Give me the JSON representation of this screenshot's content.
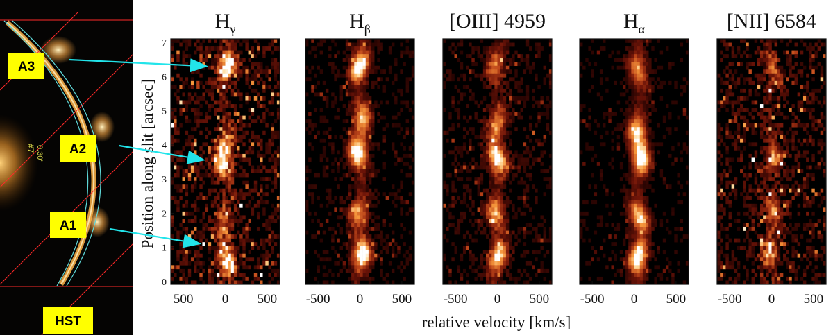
{
  "chart_data": {
    "type": "heatmap",
    "xlabel": "relative velocity [km/s]",
    "ylabel": "Position along slit [arcsec]",
    "ylim": [
      0,
      7
    ],
    "y_ticks": [
      0,
      1,
      2,
      3,
      4,
      5,
      6,
      7
    ],
    "colors": {
      "background": "#000000",
      "low": "#5a0d05",
      "mid": "#c0461a",
      "high": "#ff9a38",
      "peak": "#ffffff",
      "arrow": "#22e4ea",
      "box": "#ffff00",
      "arc": "#ffb347",
      "line": "#ff2a2a"
    },
    "panels": [
      {
        "name": "H",
        "subscript": "γ",
        "x_ticks": [
          "500",
          "0",
          "500"
        ],
        "noise": 0.55,
        "ridge_velocity": 0,
        "emission_rows": [
          [
            0.6,
            0.9
          ],
          [
            1.7,
            0.5
          ],
          [
            3.5,
            0.85
          ],
          [
            4.1,
            0.5
          ],
          [
            6.3,
            1.0
          ]
        ]
      },
      {
        "name": "H",
        "subscript": "β",
        "x_ticks": [
          "-500",
          "0",
          "500"
        ],
        "noise": 0.25,
        "ridge_velocity": 0,
        "emission_rows": [
          [
            0.8,
            1.0
          ],
          [
            2.0,
            0.6
          ],
          [
            3.8,
            1.0
          ],
          [
            4.8,
            0.7
          ],
          [
            6.3,
            1.0
          ]
        ]
      },
      {
        "name": "[OIII] 4959",
        "subscript": "",
        "x_ticks": [
          "-500",
          "0",
          "500"
        ],
        "noise": 0.3,
        "ridge_velocity": 0,
        "emission_rows": [
          [
            0.7,
            0.9
          ],
          [
            2.0,
            0.7
          ],
          [
            3.6,
            1.0
          ],
          [
            4.6,
            0.6
          ],
          [
            6.3,
            0.5
          ]
        ]
      },
      {
        "name": "H",
        "subscript": "α",
        "x_ticks": [
          "-500",
          "0",
          "500"
        ],
        "noise": 0.2,
        "ridge_velocity": 60,
        "emission_rows": [
          [
            0.7,
            1.0
          ],
          [
            1.9,
            0.8
          ],
          [
            3.6,
            1.0
          ],
          [
            4.4,
            0.8
          ],
          [
            6.2,
            0.6
          ]
        ]
      },
      {
        "name": "[NII] 6584",
        "subscript": "",
        "x_ticks": [
          "-500",
          "0",
          "500"
        ],
        "noise": 0.5,
        "ridge_velocity": 0,
        "emission_rows": [
          [
            0.8,
            0.6
          ],
          [
            2.0,
            0.5
          ],
          [
            3.6,
            0.5
          ],
          [
            6.3,
            0.4
          ]
        ]
      }
    ]
  },
  "image_panel": {
    "source": "HST",
    "galaxy_label": "#7",
    "galaxy_offset": "0.30\"",
    "knots": [
      {
        "label": "A3",
        "target_arcsec": 6.3
      },
      {
        "label": "A2",
        "target_arcsec": 3.55
      },
      {
        "label": "A1",
        "target_arcsec": 1.1
      }
    ]
  }
}
